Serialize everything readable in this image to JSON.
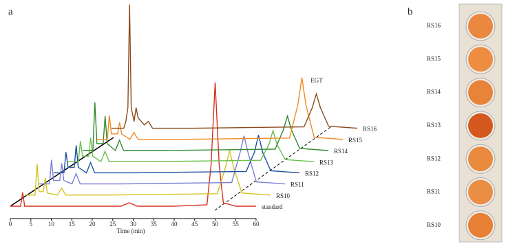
{
  "chart_data": {
    "type": "waterfall",
    "panel_label": "a",
    "xlabel": "Time (min)",
    "annotation": "EGT",
    "xlim": [
      0,
      60
    ],
    "xticks": [
      0,
      5,
      10,
      15,
      20,
      25,
      30,
      35,
      40,
      45,
      50,
      55,
      60
    ],
    "series": [
      {
        "name": "standard",
        "color": "#d62f1f",
        "x": [
          0,
          2.5,
          3,
          3.5,
          20,
          27,
          29,
          31,
          40,
          48,
          49,
          50,
          51,
          52,
          55,
          60
        ],
        "values": [
          0,
          0,
          20,
          0,
          0,
          0,
          5,
          0,
          0,
          2,
          60,
          180,
          60,
          5,
          0,
          0
        ]
      },
      {
        "name": "RS10",
        "color": "#d4c31c",
        "x": [
          0,
          2.5,
          3,
          3.5,
          4.5,
          5,
          5.5,
          8,
          9,
          10,
          20,
          47,
          49,
          50,
          51,
          53,
          60
        ],
        "values": [
          0,
          0,
          45,
          5,
          5,
          25,
          3,
          0,
          10,
          0,
          0,
          2,
          40,
          65,
          40,
          3,
          0
        ]
      },
      {
        "name": "RS11",
        "color": "#7b7fd6",
        "x": [
          0,
          2.5,
          3,
          3.5,
          5,
          5.5,
          6,
          8,
          9,
          10,
          20,
          47,
          49,
          50,
          51,
          53,
          60
        ],
        "values": [
          0,
          0,
          35,
          5,
          5,
          30,
          5,
          0,
          15,
          0,
          0,
          2,
          45,
          70,
          45,
          3,
          0
        ]
      },
      {
        "name": "RS12",
        "color": "#1d4fa0",
        "x": [
          0,
          2.5,
          3,
          3.5,
          5,
          5.5,
          6,
          8,
          9,
          10,
          20,
          47,
          49,
          50,
          51,
          53,
          60
        ],
        "values": [
          0,
          0,
          30,
          8,
          8,
          40,
          8,
          0,
          15,
          0,
          0,
          2,
          30,
          55,
          30,
          3,
          0
        ]
      },
      {
        "name": "RS13",
        "color": "#6cc04a",
        "x": [
          0,
          2.5,
          3,
          3.5,
          5,
          5.5,
          6,
          8,
          9,
          10,
          20,
          47,
          49,
          50,
          51,
          53,
          60
        ],
        "values": [
          0,
          0,
          30,
          8,
          8,
          35,
          8,
          0,
          15,
          0,
          0,
          2,
          25,
          45,
          25,
          3,
          0
        ]
      },
      {
        "name": "RS14",
        "color": "#2e8b2e",
        "x": [
          0,
          2.5,
          3,
          3.5,
          5,
          5.5,
          6,
          8,
          9,
          10,
          20,
          47,
          49,
          50,
          51,
          53,
          60
        ],
        "values": [
          0,
          0,
          70,
          10,
          10,
          50,
          10,
          0,
          15,
          0,
          0,
          2,
          30,
          50,
          30,
          3,
          0
        ]
      },
      {
        "name": "RS15",
        "color": "#f08a24",
        "x": [
          0,
          2.5,
          3,
          3.5,
          5,
          5.5,
          6,
          8,
          9,
          10,
          20,
          47,
          49,
          50,
          51,
          53,
          60
        ],
        "values": [
          0,
          0,
          35,
          8,
          8,
          25,
          8,
          0,
          10,
          0,
          0,
          2,
          50,
          90,
          50,
          3,
          0
        ]
      },
      {
        "name": "RS16",
        "color": "#8b4a1a",
        "x": [
          0,
          3,
          3.5,
          4,
          4.4,
          4.8,
          5.5,
          6,
          6.5,
          8,
          9,
          10,
          20,
          47,
          49,
          50,
          51,
          53,
          60
        ],
        "values": [
          0,
          0,
          10,
          30,
          180,
          30,
          10,
          30,
          15,
          5,
          10,
          0,
          0,
          2,
          30,
          50,
          30,
          3,
          0
        ]
      }
    ]
  },
  "panel_b": {
    "label": "b",
    "wells": [
      "RS16",
      "RS15",
      "RS14",
      "RS13",
      "RS12",
      "RS11",
      "RS10"
    ]
  }
}
